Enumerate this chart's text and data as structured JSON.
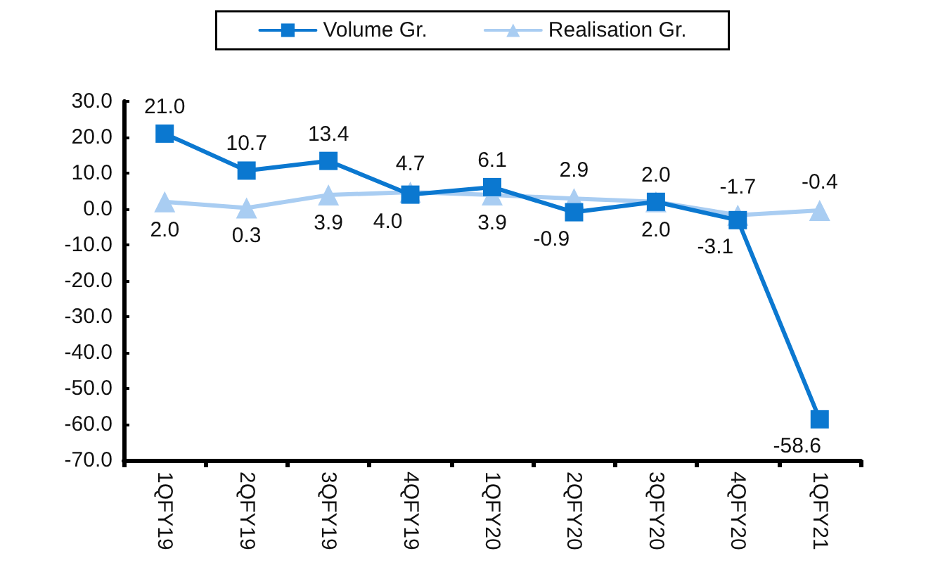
{
  "chart_data": {
    "type": "line",
    "categories": [
      "1QFY19",
      "2QFY19",
      "3QFY19",
      "4QFY19",
      "1QFY20",
      "2QFY20",
      "3QFY20",
      "4QFY20",
      "1QFY21"
    ],
    "series": [
      {
        "name": "Volume Gr.",
        "color": "#0b78d0",
        "marker": "square",
        "values": [
          21.0,
          10.7,
          13.4,
          4.0,
          6.1,
          -0.9,
          2.0,
          -3.1,
          -58.6
        ],
        "value_labels": [
          "21.0",
          "10.7",
          "13.4",
          "4.0",
          "6.1",
          "-0.9",
          "2.0",
          "-3.1",
          "-58.6"
        ]
      },
      {
        "name": "Realisation Gr.",
        "color": "#a9cdf2",
        "marker": "triangle",
        "values": [
          2.0,
          0.3,
          3.9,
          4.7,
          3.9,
          2.9,
          2.0,
          -1.7,
          -0.4
        ],
        "value_labels": [
          "2.0",
          "0.3",
          "3.9",
          "4.7",
          "3.9",
          "2.9",
          "2.0",
          "-1.7",
          "-0.4"
        ]
      }
    ],
    "ylim": [
      -70,
      30
    ],
    "yticks": [
      {
        "value": 30,
        "label": "30.0"
      },
      {
        "value": 20,
        "label": "20.0"
      },
      {
        "value": 10,
        "label": "10.0"
      },
      {
        "value": 0,
        "label": "0.0"
      },
      {
        "value": -10,
        "label": "-10.0"
      },
      {
        "value": -20,
        "label": "-20.0"
      },
      {
        "value": -30,
        "label": "-30.0"
      },
      {
        "value": -40,
        "label": "-40.0"
      },
      {
        "value": -50,
        "label": "-50.0"
      },
      {
        "value": -60,
        "label": "-60.0"
      },
      {
        "value": -70,
        "label": "-70.0"
      }
    ],
    "grid": false,
    "legend": "top",
    "line_style": "solid"
  }
}
